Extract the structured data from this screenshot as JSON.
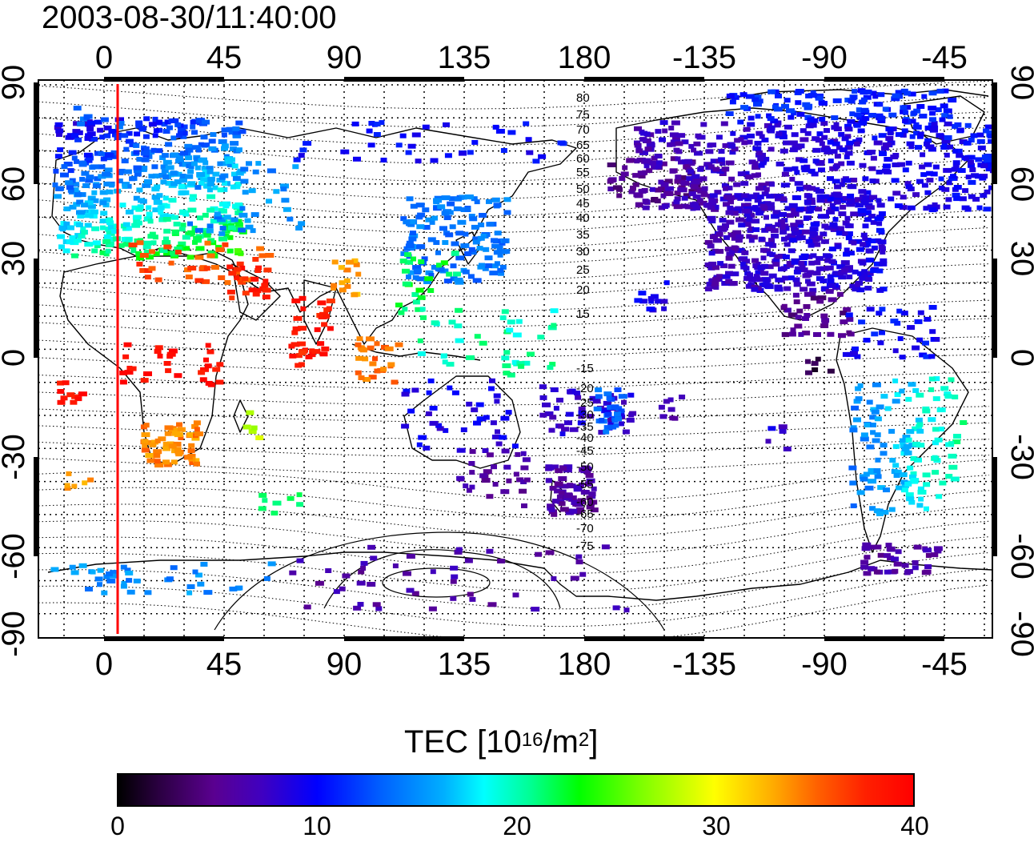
{
  "map": {
    "timestamp": "2003-08-30/11:40:00",
    "top_lon_labels": [
      "0",
      "45",
      "90",
      "135",
      "180",
      "-135",
      "-90",
      "-45"
    ],
    "bottom_lon_labels": [
      "0",
      "45",
      "90",
      "135",
      "180",
      "-135",
      "-90",
      "-45"
    ],
    "left_lat_labels": [
      "90",
      "60",
      "30",
      "0",
      "-30",
      "-60",
      "-90"
    ],
    "right_lat_labels": [
      "90",
      "60",
      "30",
      "0",
      "-30",
      "-60",
      "-90"
    ],
    "magnetic_latitude_labels": [
      "80",
      "75",
      "70",
      "65",
      "60",
      "55",
      "50",
      "45",
      "40",
      "35",
      "30",
      "25",
      "20",
      "15",
      "-15",
      "-20",
      "-25",
      "-30",
      "-35",
      "-40",
      "-45",
      "-50",
      "-55",
      "-60",
      "-65",
      "-70",
      "-75"
    ],
    "terminator_longitude": 5,
    "terminator_color": "#ff0000"
  },
  "colorbar": {
    "title_main": "TEC  [10",
    "title_exp1": "16",
    "title_mid": "/m",
    "title_exp2": "2",
    "title_end": "]",
    "ticks": [
      "0",
      "10",
      "20",
      "30",
      "40"
    ],
    "range": [
      0,
      40
    ]
  }
}
